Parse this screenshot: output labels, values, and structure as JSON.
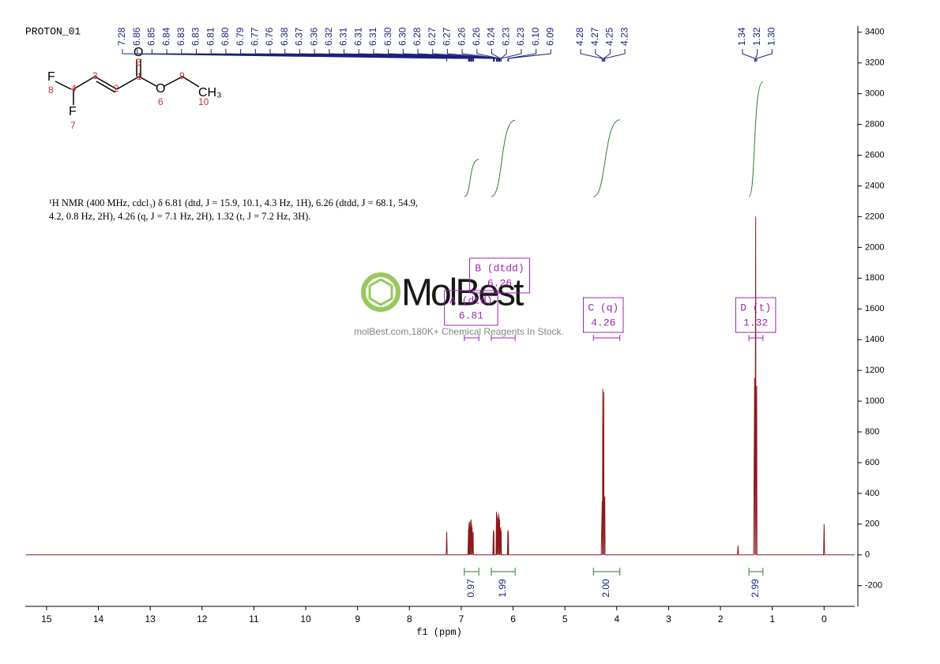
{
  "chart_data": {
    "type": "line",
    "title": "PROTON_01",
    "x_label": "f1 (ppm)",
    "xlim": [
      15.41,
      -0.59
    ],
    "xticks": [
      15,
      14,
      13,
      12,
      11,
      10,
      9,
      8,
      7,
      6,
      5,
      4,
      3,
      2,
      1,
      0
    ],
    "ylim": [
      -335,
      3440
    ],
    "yticks": [
      -200,
      0,
      200,
      400,
      600,
      800,
      1000,
      1200,
      1400,
      1600,
      1800,
      2000,
      2200,
      2400,
      2600,
      2800,
      3000,
      3200,
      3400
    ],
    "y_axis_side": "right",
    "series": [
      {
        "name": "spectrum",
        "color": "#8b1a1a",
        "x": [
          15.4,
          7.29,
          7.28,
          7.27,
          6.87,
          6.86,
          6.855,
          6.85,
          6.845,
          6.84,
          6.835,
          6.83,
          6.825,
          6.81,
          6.805,
          6.8,
          6.795,
          6.79,
          6.785,
          6.77,
          6.765,
          6.39,
          6.38,
          6.375,
          6.37,
          6.365,
          6.33,
          6.32,
          6.315,
          6.31,
          6.305,
          6.3,
          6.295,
          6.28,
          6.275,
          6.27,
          6.265,
          6.26,
          6.255,
          6.24,
          6.235,
          6.23,
          6.225,
          6.11,
          6.1,
          6.095,
          6.09,
          6.085,
          4.3,
          4.28,
          4.275,
          4.27,
          4.265,
          4.25,
          4.245,
          4.23,
          4.225,
          1.67,
          1.66,
          1.65,
          1.36,
          1.34,
          1.335,
          1.32,
          1.315,
          1.3,
          1.295,
          0.01,
          0,
          -0.01,
          -0.59
        ],
        "values": [
          0,
          0,
          150,
          0,
          0,
          170,
          0,
          210,
          0,
          190,
          0,
          220,
          0,
          230,
          0,
          200,
          0,
          180,
          0,
          150,
          0,
          0,
          160,
          0,
          150,
          0,
          0,
          280,
          0,
          260,
          0,
          240,
          0,
          270,
          0,
          250,
          0,
          230,
          0,
          180,
          0,
          160,
          0,
          0,
          160,
          0,
          150,
          0,
          0,
          350,
          0,
          1080,
          0,
          1060,
          0,
          380,
          0,
          0,
          60,
          0,
          0,
          1150,
          0,
          2200,
          0,
          1100,
          0,
          0,
          200,
          0,
          0
        ]
      }
    ],
    "peak_labels": {
      "color": "#1a237e",
      "values": [
        7.28,
        6.86,
        6.85,
        6.84,
        6.83,
        6.83,
        6.81,
        6.8,
        6.79,
        6.77,
        6.76,
        6.38,
        6.37,
        6.36,
        6.32,
        6.31,
        6.31,
        6.31,
        6.3,
        6.3,
        6.28,
        6.27,
        6.27,
        6.26,
        6.26,
        6.24,
        6.23,
        6.23,
        6.1,
        6.09,
        4.28,
        4.27,
        4.25,
        4.23,
        1.34,
        1.32,
        1.3
      ],
      "value_labels": [
        "7.28",
        "6.86",
        "6.85",
        "6.84",
        "6.83",
        "6.83",
        "6.81",
        "6.80",
        "6.79",
        "6.77",
        "6.76",
        "6.38",
        "6.37",
        "6.36",
        "6.32",
        "6.31",
        "6.31",
        "6.31",
        "6.30",
        "6.30",
        "6.28",
        "6.27",
        "6.27",
        "6.26",
        "6.26",
        "6.24",
        "6.23",
        "6.23",
        "6.10",
        "6.09",
        "4.28",
        "4.27",
        "4.25",
        "4.23",
        "1.34",
        "1.32",
        "1.30"
      ]
    },
    "integrals": {
      "color": "#2e7d32",
      "label_color": "#1a237e",
      "from": [
        6.94,
        6.42,
        4.45,
        1.45
      ],
      "to": [
        6.66,
        5.96,
        3.94,
        1.18
      ],
      "values": [
        0.97,
        1.99,
        2,
        2.99
      ],
      "value_labels": [
        "0.97",
        "1.99",
        "2.00",
        "2.99"
      ]
    },
    "multiplets": [
      {
        "label": "A (dtd)",
        "shift": 6.81,
        "range": [
          6.94,
          6.66
        ]
      },
      {
        "label": "B (dtdd)",
        "shift": 6.26,
        "range": [
          6.42,
          5.96
        ]
      },
      {
        "label": "C (q)",
        "shift": 4.26,
        "range": [
          4.45,
          3.94
        ]
      },
      {
        "label": "D (t)",
        "shift": 1.32,
        "range": [
          1.45,
          1.18
        ]
      }
    ],
    "description": [
      "¹H NMR (400 MHz, cdcl₃) δ 6.81 (dtd, J = 15.9, 10.1, 4.3 Hz, 1H), 6.26 (dtdd, J = 68.1, 54.9,",
      "4.2, 0.8 Hz, 2H), 4.26 (q, J = 7.1 Hz, 2H), 1.32 (t, J = 7.2 Hz, 3H)."
    ],
    "molecule": {
      "atoms": [
        "F",
        "F",
        "O",
        "O",
        "CH₃"
      ],
      "numbers": [
        "1",
        "2",
        "3",
        "4",
        "5",
        "6",
        "7",
        "8",
        "9",
        "10"
      ]
    },
    "watermark": {
      "brand": "MolBest",
      "tagline": "molBest.com,180K+ Chemical Reagents In Stock."
    }
  }
}
